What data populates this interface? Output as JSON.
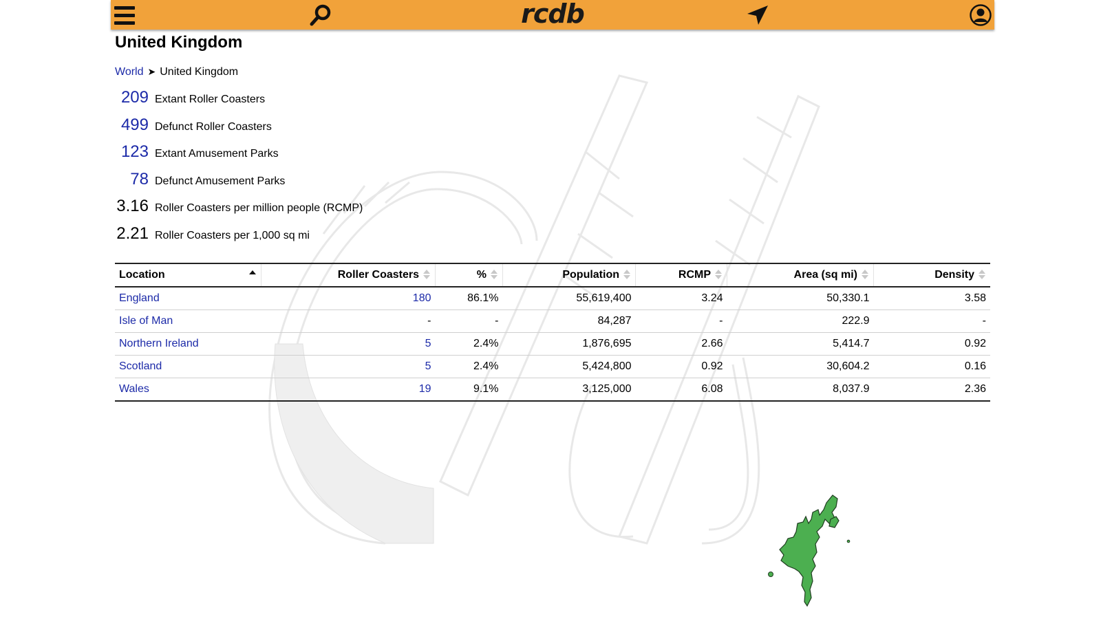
{
  "header": {
    "logo": "rcdb",
    "menu_icon": "hamburger-menu-icon",
    "search_icon": "search-icon",
    "nearby_icon": "location-arrow-icon",
    "account_icon": "user-account-icon",
    "bar_color": "#f1a23a"
  },
  "page_title": "United Kingdom",
  "breadcrumb": {
    "root": "World",
    "separator": "➤",
    "current": "United Kingdom"
  },
  "stats": [
    {
      "value": "209",
      "label": "Extant Roller Coasters"
    },
    {
      "value": "499",
      "label": "Defunct Roller Coasters"
    },
    {
      "value": "123",
      "label": "Extant Amusement Parks"
    },
    {
      "value": "78",
      "label": "Defunct Amusement Parks"
    },
    {
      "value": "3.16",
      "label": "Roller Coasters per million people (RCMP)"
    },
    {
      "value": "2.21",
      "label": "Roller Coasters per 1,000 sq mi"
    }
  ],
  "table": {
    "columns": [
      "Location",
      "Roller Coasters",
      "%",
      "Population",
      "RCMP",
      "Area (sq mi)",
      "Density"
    ],
    "sorted_column": "Location",
    "rows": [
      [
        "England",
        "180",
        "86.1%",
        "55,619,400",
        "3.24",
        "50,330.1",
        "3.58"
      ],
      [
        "Isle of Man",
        "-",
        "-",
        "84,287",
        "-",
        "222.9",
        "-"
      ],
      [
        "Northern Ireland",
        "5",
        "2.4%",
        "1,876,695",
        "2.66",
        "5,414.7",
        "0.92"
      ],
      [
        "Scotland",
        "5",
        "2.4%",
        "5,424,800",
        "0.92",
        "30,604.2",
        "0.16"
      ],
      [
        "Wales",
        "19",
        "9.1%",
        "3,125,000",
        "6.08",
        "8,037.9",
        "2.36"
      ]
    ]
  },
  "colors": {
    "link": "#1c2aa8",
    "map_fill": "#4caf50"
  }
}
